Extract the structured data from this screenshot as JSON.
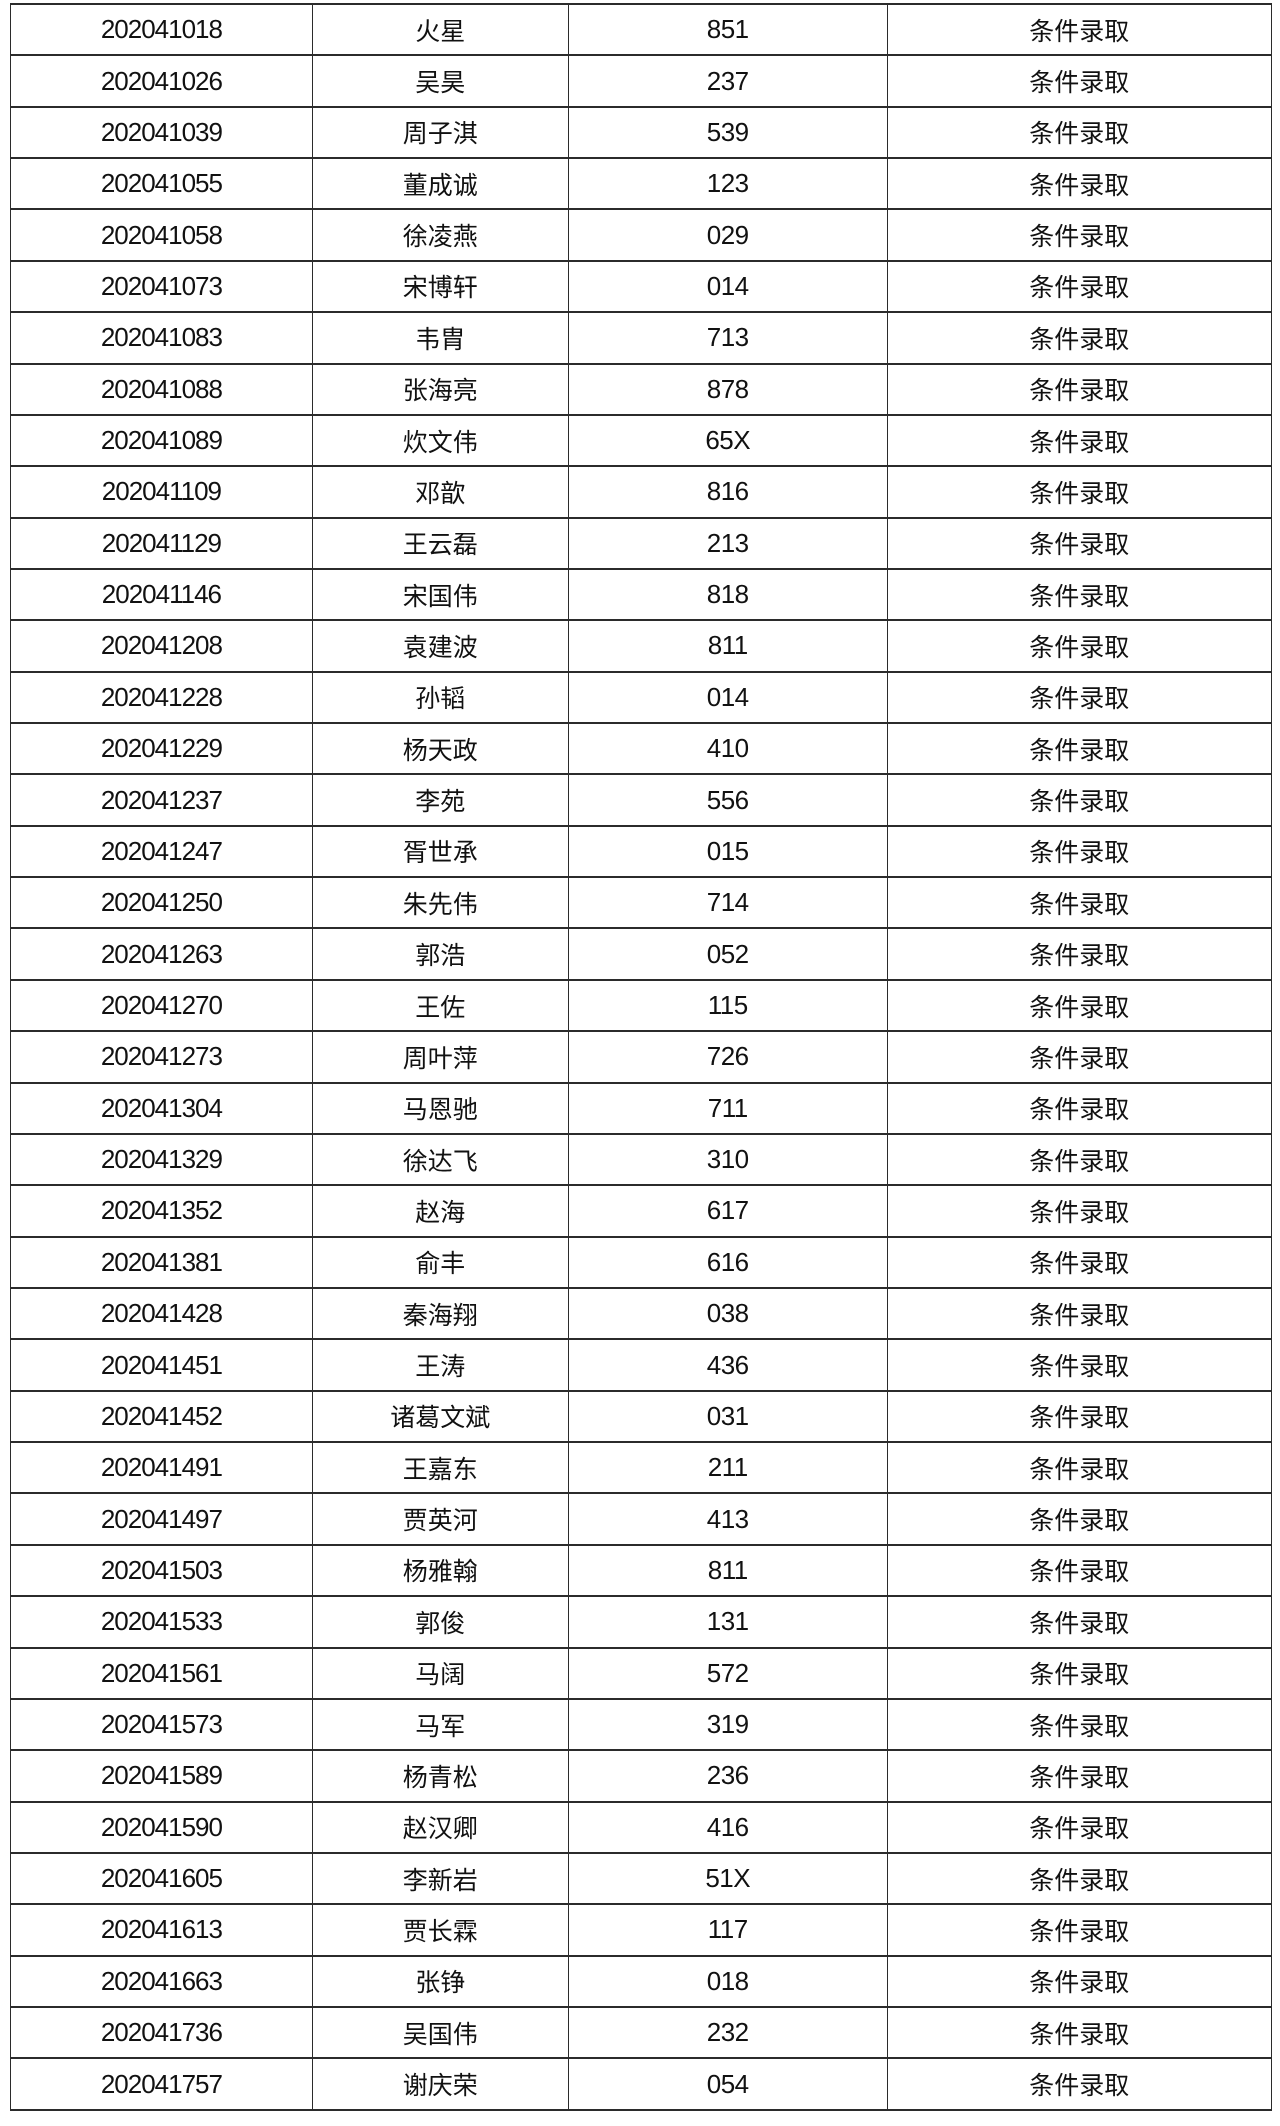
{
  "table": {
    "name": "admission-results-table",
    "status_label": "条件录取",
    "columns": [
      {
        "key": "id",
        "name": "student-id-column"
      },
      {
        "key": "name",
        "name": "student-name-column"
      },
      {
        "key": "code",
        "name": "code-column"
      },
      {
        "key": "status",
        "name": "status-column"
      }
    ],
    "rows": [
      {
        "id": "202041018",
        "name": "火星",
        "code": "851",
        "status": "条件录取"
      },
      {
        "id": "202041026",
        "name": "吴昊",
        "code": "237",
        "status": "条件录取"
      },
      {
        "id": "202041039",
        "name": "周子淇",
        "code": "539",
        "status": "条件录取"
      },
      {
        "id": "202041055",
        "name": "董成诚",
        "code": "123",
        "status": "条件录取"
      },
      {
        "id": "202041058",
        "name": "徐凌燕",
        "code": "029",
        "status": "条件录取"
      },
      {
        "id": "202041073",
        "name": "宋博轩",
        "code": "014",
        "status": "条件录取"
      },
      {
        "id": "202041083",
        "name": "韦胄",
        "code": "713",
        "status": "条件录取"
      },
      {
        "id": "202041088",
        "name": "张海亮",
        "code": "878",
        "status": "条件录取"
      },
      {
        "id": "202041089",
        "name": "炊文伟",
        "code": "65X",
        "status": "条件录取"
      },
      {
        "id": "202041109",
        "name": "邓歆",
        "code": "816",
        "status": "条件录取"
      },
      {
        "id": "202041129",
        "name": "王云磊",
        "code": "213",
        "status": "条件录取"
      },
      {
        "id": "202041146",
        "name": "宋国伟",
        "code": "818",
        "status": "条件录取"
      },
      {
        "id": "202041208",
        "name": "袁建波",
        "code": "811",
        "status": "条件录取"
      },
      {
        "id": "202041228",
        "name": "孙韬",
        "code": "014",
        "status": "条件录取"
      },
      {
        "id": "202041229",
        "name": "杨天政",
        "code": "410",
        "status": "条件录取"
      },
      {
        "id": "202041237",
        "name": "李苑",
        "code": "556",
        "status": "条件录取"
      },
      {
        "id": "202041247",
        "name": "胥世承",
        "code": "015",
        "status": "条件录取"
      },
      {
        "id": "202041250",
        "name": "朱先伟",
        "code": "714",
        "status": "条件录取"
      },
      {
        "id": "202041263",
        "name": "郭浩",
        "code": "052",
        "status": "条件录取"
      },
      {
        "id": "202041270",
        "name": "王佐",
        "code": "115",
        "status": "条件录取"
      },
      {
        "id": "202041273",
        "name": "周叶萍",
        "code": "726",
        "status": "条件录取"
      },
      {
        "id": "202041304",
        "name": "马恩驰",
        "code": "711",
        "status": "条件录取"
      },
      {
        "id": "202041329",
        "name": "徐达飞",
        "code": "310",
        "status": "条件录取"
      },
      {
        "id": "202041352",
        "name": "赵海",
        "code": "617",
        "status": "条件录取"
      },
      {
        "id": "202041381",
        "name": "俞丰",
        "code": "616",
        "status": "条件录取"
      },
      {
        "id": "202041428",
        "name": "秦海翔",
        "code": "038",
        "status": "条件录取"
      },
      {
        "id": "202041451",
        "name": "王涛",
        "code": "436",
        "status": "条件录取"
      },
      {
        "id": "202041452",
        "name": "诸葛文斌",
        "code": "031",
        "status": "条件录取"
      },
      {
        "id": "202041491",
        "name": "王嘉东",
        "code": "211",
        "status": "条件录取"
      },
      {
        "id": "202041497",
        "name": "贾英河",
        "code": "413",
        "status": "条件录取"
      },
      {
        "id": "202041503",
        "name": "杨雅翰",
        "code": "811",
        "status": "条件录取"
      },
      {
        "id": "202041533",
        "name": "郭俊",
        "code": "131",
        "status": "条件录取"
      },
      {
        "id": "202041561",
        "name": "马阔",
        "code": "572",
        "status": "条件录取"
      },
      {
        "id": "202041573",
        "name": "马军",
        "code": "319",
        "status": "条件录取"
      },
      {
        "id": "202041589",
        "name": "杨青松",
        "code": "236",
        "status": "条件录取"
      },
      {
        "id": "202041590",
        "name": "赵汉卿",
        "code": "416",
        "status": "条件录取"
      },
      {
        "id": "202041605",
        "name": "李新岩",
        "code": "51X",
        "status": "条件录取"
      },
      {
        "id": "202041613",
        "name": "贾长霖",
        "code": "117",
        "status": "条件录取"
      },
      {
        "id": "202041663",
        "name": "张铮",
        "code": "018",
        "status": "条件录取"
      },
      {
        "id": "202041736",
        "name": "吴国伟",
        "code": "232",
        "status": "条件录取"
      },
      {
        "id": "202041757",
        "name": "谢庆荣",
        "code": "054",
        "status": "条件录取"
      }
    ]
  },
  "colors": {
    "border": "#2b2b2b",
    "text": "#111111",
    "background": "#ffffff"
  }
}
